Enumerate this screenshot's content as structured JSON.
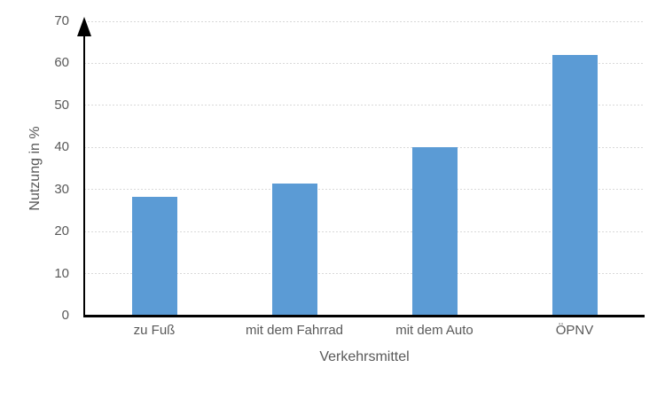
{
  "chart_data": {
    "type": "bar",
    "categories": [
      "zu Fuß",
      "mit dem Fahrrad",
      "mit dem Auto",
      "ÖPNV"
    ],
    "values": [
      28.3,
      31.5,
      40,
      62
    ],
    "xlabel": "Verkehrsmittel",
    "ylabel": "Nutzung in %",
    "ylim": [
      0,
      70
    ],
    "yticks": [
      0,
      10,
      20,
      30,
      40,
      50,
      60,
      70
    ],
    "grid": "horizontal-dashed",
    "legend": "none",
    "colors": {
      "bar": "#5B9BD5",
      "axis": "#000000",
      "text": "#595959",
      "gridline": "#D9D9D9",
      "background": "#FFFFFF"
    }
  }
}
